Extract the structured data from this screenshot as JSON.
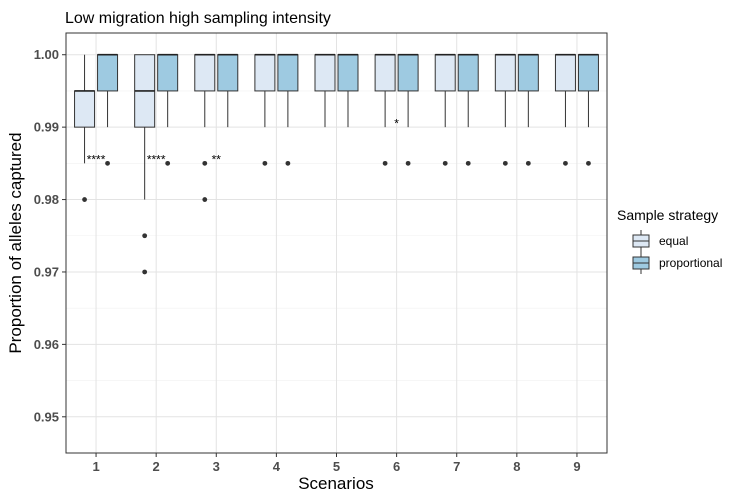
{
  "chart_data": {
    "type": "box",
    "title": "Low migration high sampling intensity",
    "xlabel": "Scenarios",
    "ylabel": "Proportion of alleles captured",
    "categories": [
      "1",
      "2",
      "3",
      "4",
      "5",
      "6",
      "7",
      "8",
      "9"
    ],
    "ylim": [
      0.945,
      1.003
    ],
    "yticks": [
      "0.95",
      "0.96",
      "0.97",
      "0.98",
      "0.99",
      "1.00"
    ],
    "grid": true,
    "legend_position": "right",
    "legend_title": "Sample strategy",
    "series": [
      {
        "name": "equal",
        "color": "#dde8f4",
        "boxes": [
          {
            "q1": 0.99,
            "median": 0.995,
            "q3": 0.995,
            "whisker_low": 0.985,
            "whisker_high": 1.0,
            "outliers": [
              0.98
            ]
          },
          {
            "q1": 0.99,
            "median": 0.995,
            "q3": 1.0,
            "whisker_low": 0.98,
            "whisker_high": 1.0,
            "outliers": [
              0.975,
              0.97
            ]
          },
          {
            "q1": 0.995,
            "median": 1.0,
            "q3": 1.0,
            "whisker_low": 0.99,
            "whisker_high": 1.0,
            "outliers": [
              0.985,
              0.98
            ]
          },
          {
            "q1": 0.995,
            "median": 1.0,
            "q3": 1.0,
            "whisker_low": 0.99,
            "whisker_high": 1.0,
            "outliers": [
              0.985
            ]
          },
          {
            "q1": 0.995,
            "median": 1.0,
            "q3": 1.0,
            "whisker_low": 0.99,
            "whisker_high": 1.0,
            "outliers": []
          },
          {
            "q1": 0.995,
            "median": 1.0,
            "q3": 1.0,
            "whisker_low": 0.99,
            "whisker_high": 1.0,
            "outliers": [
              0.985
            ]
          },
          {
            "q1": 0.995,
            "median": 1.0,
            "q3": 1.0,
            "whisker_low": 0.99,
            "whisker_high": 1.0,
            "outliers": [
              0.985
            ]
          },
          {
            "q1": 0.995,
            "median": 1.0,
            "q3": 1.0,
            "whisker_low": 0.99,
            "whisker_high": 1.0,
            "outliers": [
              0.985
            ]
          },
          {
            "q1": 0.995,
            "median": 1.0,
            "q3": 1.0,
            "whisker_low": 0.99,
            "whisker_high": 1.0,
            "outliers": [
              0.985
            ]
          }
        ]
      },
      {
        "name": "proportional",
        "color": "#9ecae1",
        "boxes": [
          {
            "q1": 0.995,
            "median": 1.0,
            "q3": 1.0,
            "whisker_low": 0.99,
            "whisker_high": 1.0,
            "outliers": [
              0.985
            ]
          },
          {
            "q1": 0.995,
            "median": 1.0,
            "q3": 1.0,
            "whisker_low": 0.99,
            "whisker_high": 1.0,
            "outliers": [
              0.985
            ]
          },
          {
            "q1": 0.995,
            "median": 1.0,
            "q3": 1.0,
            "whisker_low": 0.99,
            "whisker_high": 1.0,
            "outliers": []
          },
          {
            "q1": 0.995,
            "median": 1.0,
            "q3": 1.0,
            "whisker_low": 0.99,
            "whisker_high": 1.0,
            "outliers": [
              0.985
            ]
          },
          {
            "q1": 0.995,
            "median": 1.0,
            "q3": 1.0,
            "whisker_low": 0.99,
            "whisker_high": 1.0,
            "outliers": []
          },
          {
            "q1": 0.995,
            "median": 1.0,
            "q3": 1.0,
            "whisker_low": 0.99,
            "whisker_high": 1.0,
            "outliers": [
              0.985
            ]
          },
          {
            "q1": 0.995,
            "median": 1.0,
            "q3": 1.0,
            "whisker_low": 0.99,
            "whisker_high": 1.0,
            "outliers": [
              0.985
            ]
          },
          {
            "q1": 0.995,
            "median": 1.0,
            "q3": 1.0,
            "whisker_low": 0.99,
            "whisker_high": 1.0,
            "outliers": [
              0.985
            ]
          },
          {
            "q1": 0.995,
            "median": 1.0,
            "q3": 1.0,
            "whisker_low": 0.99,
            "whisker_high": 1.0,
            "outliers": [
              0.985
            ]
          }
        ]
      }
    ],
    "annotations": [
      {
        "scenario": "1",
        "text": "****",
        "y": 0.9855
      },
      {
        "scenario": "2",
        "text": "****",
        "y": 0.9855
      },
      {
        "scenario": "3",
        "text": "**",
        "y": 0.9855
      },
      {
        "scenario": "6",
        "text": "*",
        "y": 0.9905
      }
    ]
  }
}
